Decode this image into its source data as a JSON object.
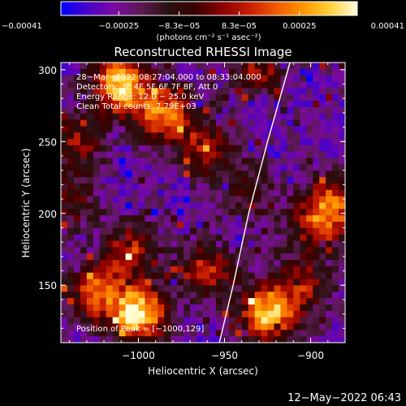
{
  "chart_data": {
    "type": "heatmap",
    "title": "Reconstructed RHESSI Image",
    "xlabel": "Heliocentric X (arcsec)",
    "ylabel": "Heliocentric Y (arcsec)",
    "xlim": [
      -1045,
      -880
    ],
    "ylim": [
      110,
      305
    ],
    "x_ticks": [
      -1000,
      -950,
      -900
    ],
    "x_tick_labels": [
      "−1000",
      "−950",
      "−900"
    ],
    "y_ticks": [
      150,
      200,
      250,
      300
    ],
    "y_tick_labels": [
      "150",
      "200",
      "250",
      "300"
    ],
    "colorbar": {
      "range": [
        -0.00041,
        0.00041
      ],
      "ticks": [
        -0.00041,
        -0.00025,
        -8.3e-05,
        8.3e-05,
        0.00025,
        0.00041
      ],
      "tick_labels": [
        "−0.00041",
        "−0.00025",
        "−8.3e−05",
        "8.3e−05",
        "0.00025",
        "0.00041"
      ],
      "unit_label": "(photons cm⁻² s⁻¹ asec⁻²)",
      "colormap": [
        "#0000ff",
        "#4a00c8",
        "#7a0aa0",
        "#5a1a50",
        "#2a1010",
        "#3a0000",
        "#8a0000",
        "#c81e00",
        "#f05a00",
        "#ff9600",
        "#ffd23c",
        "#ffffdc"
      ]
    },
    "annotations": [
      "28−Mar−2022 08:27:04.000 to 08:33:04.000",
      "Detectors: 3F 4F 5F 6F 7F 8F, Att 0",
      "Energy Range: 12.0 − 25.0 keV",
      "Clean     Total counts: 7.79E+03"
    ],
    "peak_label": "Position of Peak = [−1000,129]",
    "hot_spots": [
      {
        "x": -1010,
        "y": 290,
        "intensity": 0.95
      },
      {
        "x": -985,
        "y": 270,
        "intensity": 0.75
      },
      {
        "x": -1035,
        "y": 250,
        "intensity": 0.45
      },
      {
        "x": -960,
        "y": 245,
        "intensity": 0.5
      },
      {
        "x": -1040,
        "y": 210,
        "intensity": 0.35
      },
      {
        "x": -1005,
        "y": 175,
        "intensity": 0.55
      },
      {
        "x": -1025,
        "y": 145,
        "intensity": 0.65
      },
      {
        "x": -1000,
        "y": 130,
        "intensity": 1.0
      },
      {
        "x": -960,
        "y": 160,
        "intensity": 0.55
      },
      {
        "x": -925,
        "y": 130,
        "intensity": 0.9
      },
      {
        "x": -905,
        "y": 150,
        "intensity": 0.45
      },
      {
        "x": -900,
        "y": 190,
        "intensity": 0.35
      },
      {
        "x": -888,
        "y": 205,
        "intensity": 0.7
      },
      {
        "x": -930,
        "y": 300,
        "intensity": 0.45
      },
      {
        "x": -935,
        "y": 215,
        "intensity": 0.3
      }
    ],
    "limb_arc": [
      [
        -953,
        110
      ],
      [
        -945,
        150
      ],
      [
        -936,
        200
      ],
      [
        -925,
        250
      ],
      [
        -912,
        305
      ]
    ]
  },
  "footer": {
    "timestamp": "12−May−2022 06:43"
  }
}
